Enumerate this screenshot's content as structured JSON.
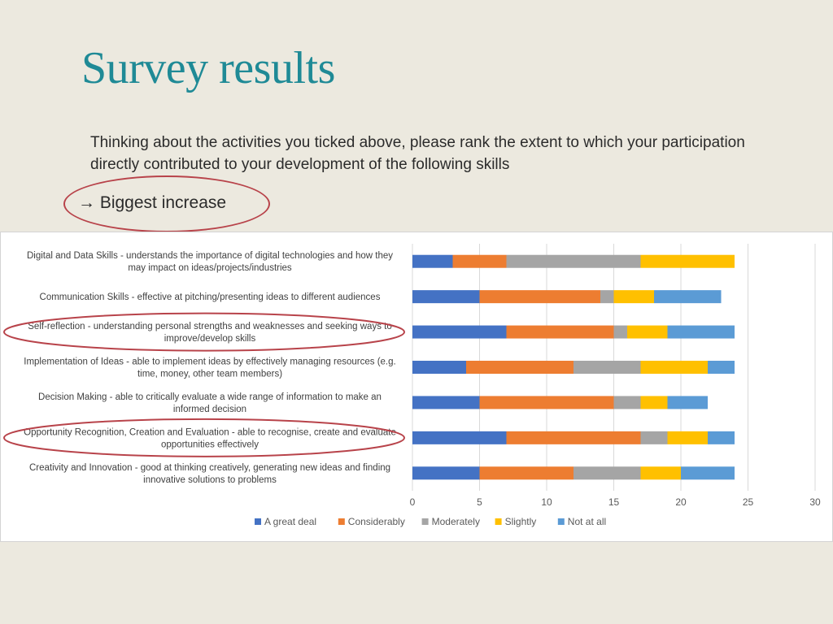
{
  "slide": {
    "title": "Survey results",
    "question": "Thinking about the activities you ticked above, please rank the extent to which your participation directly contributed to your development of the following skills",
    "callout": "→ Biggest increase"
  },
  "colors": {
    "title": "#1f8a96",
    "highlight_ring": "#b8434a"
  },
  "chart_data": {
    "type": "bar",
    "orientation": "horizontal",
    "stacked": true,
    "categories": [
      [
        "Digital and Data Skills - understands the importance of digital technologies and how they",
        "may impact on ideas/projects/industries"
      ],
      [
        "Communication Skills - effective at pitching/presenting ideas to different audiences"
      ],
      [
        "Self-reflection - understanding personal strengths and weaknesses and seeking ways to",
        "improve/develop skills"
      ],
      [
        "Implementation of Ideas - able to implement ideas by effectively managing resources (e.g.",
        "time, money, other team members)"
      ],
      [
        "Decision Making - able to critically evaluate a wide range of information to make an",
        "informed decision"
      ],
      [
        "Opportunity Recognition, Creation and Evaluation - able to recognise, create and evaluate",
        "opportunities effectively"
      ],
      [
        "Creativity and Innovation - good at thinking creatively, generating new ideas and finding",
        "innovative solutions to problems"
      ]
    ],
    "series": [
      {
        "name": "A great deal",
        "color": "#4472c4",
        "values": [
          3,
          5,
          7,
          4,
          5,
          7,
          5
        ]
      },
      {
        "name": "Considerably",
        "color": "#ed7d31",
        "values": [
          4,
          9,
          8,
          8,
          10,
          10,
          7
        ]
      },
      {
        "name": "Moderately",
        "color": "#a5a5a5",
        "values": [
          10,
          1,
          1,
          5,
          2,
          2,
          5
        ]
      },
      {
        "name": "Slightly",
        "color": "#ffc000",
        "values": [
          7,
          3,
          3,
          5,
          2,
          3,
          3
        ]
      },
      {
        "name": "Not at all",
        "color": "#5b9bd5",
        "values": [
          0,
          5,
          5,
          2,
          3,
          2,
          4
        ]
      }
    ],
    "xlim": [
      0,
      30
    ],
    "xticks": [
      0,
      5,
      10,
      15,
      20,
      25,
      30
    ],
    "grid": true,
    "legend": "bottom",
    "highlighted": [
      2,
      5
    ]
  }
}
